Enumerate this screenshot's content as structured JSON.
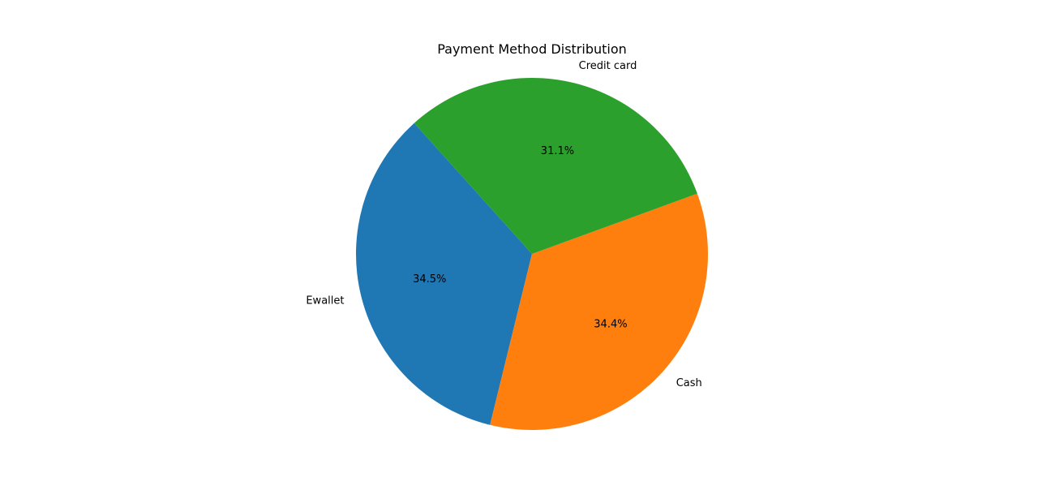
{
  "chart_data": {
    "type": "pie",
    "title": "Payment Method Distribution",
    "start_angle_deg": 132,
    "direction": "counterclockwise",
    "slices": [
      {
        "label": "Ewallet",
        "percent": 34.5,
        "percent_label": "34.5%",
        "color": "#1f77b4"
      },
      {
        "label": "Cash",
        "percent": 34.4,
        "percent_label": "34.4%",
        "color": "#ff7f0e"
      },
      {
        "label": "Credit card",
        "percent": 31.1,
        "percent_label": "31.1%",
        "color": "#2ca02c"
      }
    ],
    "legend": false,
    "grid": false
  }
}
